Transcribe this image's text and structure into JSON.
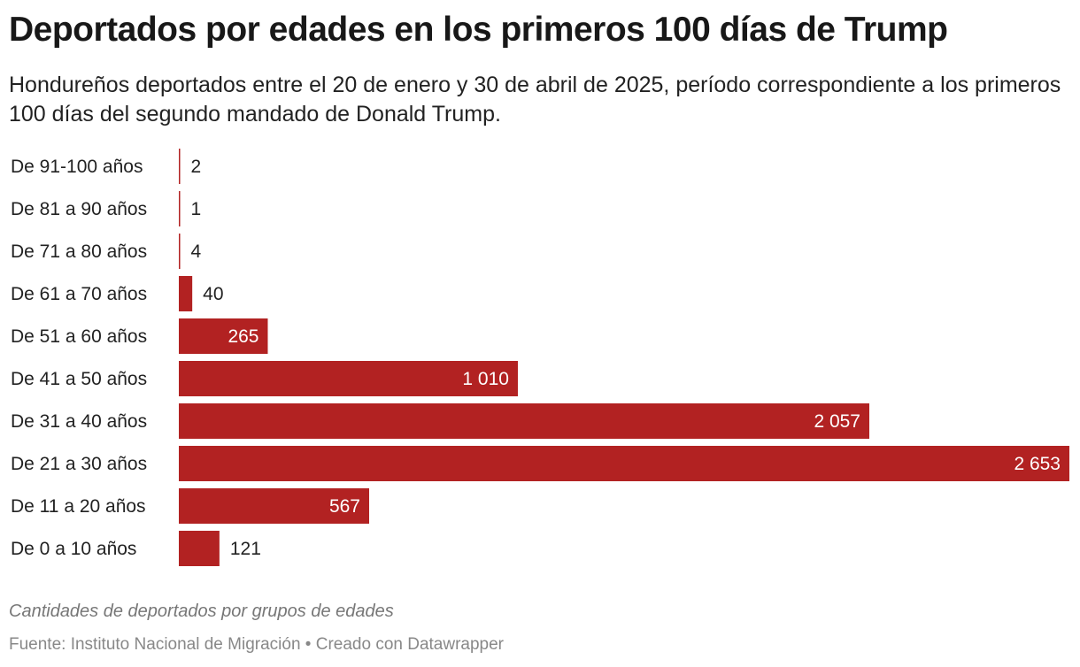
{
  "title": "Deportados por edades en los primeros 100 días de Trump",
  "subtitle": "Hondureños deportados entre el 20 de enero y 30 de abril de 2025, período correspondiente a los primeros 100 días del segundo mandado de Donald Trump.",
  "notes": "Cantidades de deportados por grupos de edades",
  "source": "Fuente: Instituto Nacional de Migración • Creado con Datawrapper",
  "chart_data": {
    "type": "bar",
    "orientation": "horizontal",
    "categories": [
      "De 91-100 años",
      "De 81 a 90 años",
      "De 71 a 80 años",
      "De 61 a 70 años",
      "De 51 a 60 años",
      "De 41 a 50 años",
      "De 31 a 40 años",
      "De 21 a 30 años",
      "De 11 a 20 años",
      "De 0 a 10 años"
    ],
    "values": [
      2,
      1,
      4,
      40,
      265,
      1010,
      2057,
      2653,
      567,
      121
    ],
    "value_labels": [
      "2",
      "1",
      "4",
      "40",
      "265",
      "1 010",
      "2 057",
      "2 653",
      "567",
      "121"
    ],
    "bar_color": "#b22222",
    "xlim": [
      0,
      2653
    ],
    "grid": false
  }
}
